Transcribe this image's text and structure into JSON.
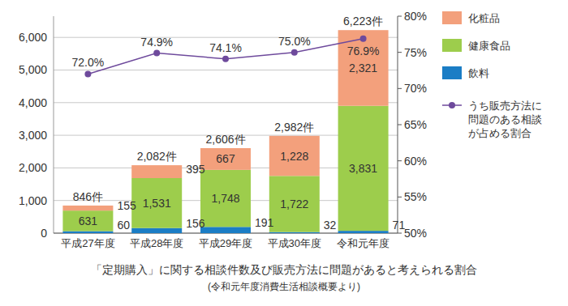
{
  "chart_data": {
    "type": "bar",
    "stacked": true,
    "title": "「定期購入」に関する相談件数及び販売方法に問題があると考えられる割合",
    "subtitle": "(令和元年度消費生活相談概要より)",
    "categories": [
      "平成27年度",
      "平成28年度",
      "平成29年度",
      "平成30年度",
      "令和元年度"
    ],
    "series": [
      {
        "name": "飲料",
        "color": "#1b7dc5",
        "values": [
          60,
          156,
          191,
          32,
          71
        ],
        "value_labels": [
          "60",
          "156",
          "191",
          "32",
          "71"
        ]
      },
      {
        "name": "健康食品",
        "color": "#9dcd4c",
        "values": [
          631,
          1531,
          1748,
          1722,
          3831
        ],
        "value_labels": [
          "631",
          "1,531",
          "1,748",
          "1,722",
          "3,831"
        ]
      },
      {
        "name": "化粧品",
        "color": "#f3a07c",
        "values": [
          155,
          395,
          667,
          1228,
          2321
        ],
        "value_labels": [
          "155",
          "395",
          "667",
          "1,228",
          "2,321"
        ]
      },
      {
        "name": "うち販売方法に問題のある相談が占める割合",
        "type": "line",
        "axis": "y2",
        "color": "#6e4a9c",
        "marker": "circle",
        "values": [
          72.0,
          74.9,
          74.1,
          75.0,
          76.9
        ],
        "value_labels": [
          "72.0%",
          "74.9%",
          "74.1%",
          "75.0%",
          "76.9%"
        ]
      }
    ],
    "total_labels": [
      "846件",
      "2,082件",
      "2,606件",
      "2,982件",
      "6,223件"
    ],
    "ylim": [
      0,
      6650
    ],
    "yticks": [
      0,
      {
        "value": 1000,
        "label": "1,000"
      },
      {
        "value": 2000,
        "label": "2,000"
      },
      {
        "value": 3000,
        "label": "3,000"
      },
      {
        "value": 4000,
        "label": "4,000"
      },
      {
        "value": 5000,
        "label": "5,000"
      },
      {
        "value": 6000,
        "label": "6,000"
      }
    ],
    "y2lim": [
      50,
      80
    ],
    "y2ticks": [
      {
        "value": 50,
        "label": "50%"
      },
      {
        "value": 55,
        "label": "55%"
      },
      {
        "value": 60,
        "label": "60%"
      },
      {
        "value": 65,
        "label": "65%"
      },
      {
        "value": 70,
        "label": "70%"
      },
      {
        "value": 75,
        "label": "75%"
      },
      {
        "value": 80,
        "label": "80%"
      }
    ],
    "grid": true,
    "legend": "right",
    "data_labels": true
  }
}
